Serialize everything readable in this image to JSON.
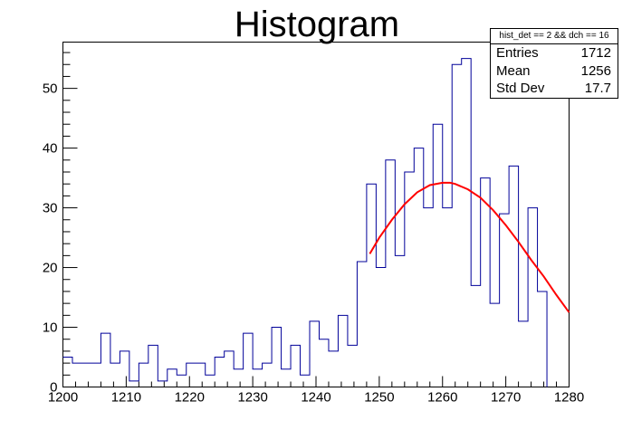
{
  "chart_data": {
    "type": "bar",
    "title": "Histogram",
    "xlabel": "",
    "ylabel": "",
    "xlim": [
      1200,
      1280
    ],
    "ylim": [
      0,
      57.75
    ],
    "bin_width": 1.5,
    "bin_start": 1200,
    "x_ticks": [
      1200,
      1210,
      1220,
      1230,
      1240,
      1250,
      1260,
      1270,
      1280
    ],
    "y_ticks": [
      0,
      10,
      20,
      30,
      40,
      50
    ],
    "values": [
      5,
      4,
      4,
      4,
      9,
      4,
      6,
      1,
      4,
      7,
      1,
      3,
      2,
      4,
      4,
      2,
      5,
      6,
      3,
      9,
      3,
      4,
      10,
      3,
      7,
      2,
      11,
      8,
      6,
      12,
      7,
      21,
      34,
      20,
      38,
      22,
      36,
      40,
      30,
      44,
      30,
      54,
      55,
      17,
      35,
      14,
      29,
      37,
      11,
      30,
      16
    ],
    "fit": {
      "color": "#ff0000",
      "x": [
        1248.5,
        1250,
        1252,
        1254,
        1256,
        1258,
        1260,
        1261.2,
        1262,
        1264,
        1266,
        1268,
        1270,
        1272,
        1274,
        1276,
        1278,
        1280
      ],
      "y": [
        22.3,
        25.0,
        28.0,
        30.6,
        32.6,
        33.8,
        34.2,
        34.2,
        34.0,
        33.1,
        31.7,
        29.6,
        27.1,
        24.3,
        21.3,
        18.5,
        15.4,
        12.5
      ]
    },
    "line_color": "#000099",
    "stats": {
      "title": "hist_det == 2 && dch == 16",
      "entries_label": "Entries",
      "entries_value": "1712",
      "mean_label": "Mean",
      "mean_value": "1256",
      "std_label": "Std Dev",
      "std_value": "17.7"
    }
  }
}
